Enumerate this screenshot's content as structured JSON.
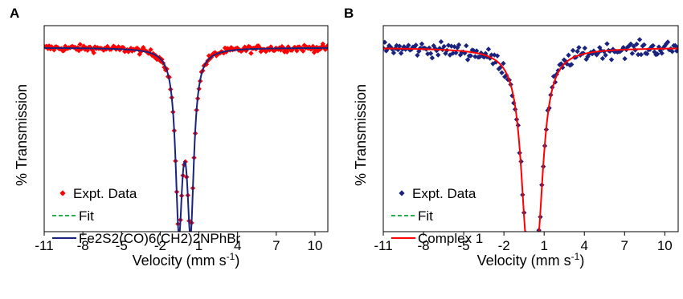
{
  "chart_data": [
    {
      "panel_label": "A",
      "type": "scatter",
      "xlabel": "Velocity (mm s",
      "xlabel_sup": "-1",
      "xlabel_end": ")",
      "ylabel": "% Transmission",
      "xlim": [
        -11,
        11
      ],
      "ylim": [
        0.0,
        1.12
      ],
      "xticks": [
        -11,
        -8,
        -5,
        -2,
        1,
        4,
        7,
        10
      ],
      "xtick_labels": [
        "-11",
        "-8",
        "-5",
        "-2",
        "1",
        "4",
        "7",
        "10"
      ],
      "grid": false,
      "legend_position": "bottom-left",
      "legend": [
        {
          "label": "Expt. Data",
          "kind": "diamond",
          "color": "#ff0000"
        },
        {
          "label": "Fit",
          "kind": "dashed",
          "color": "#22b14c"
        },
        {
          "label": "Fe2S2(CO)6(CH2)2NPhBr",
          "kind": "line",
          "color": "#1a237e"
        }
      ],
      "series": [
        {
          "name": "Expt. Data",
          "marker_color": "#ff0000",
          "baseline": 1.0,
          "noise": 0.018,
          "x_start": -11,
          "x_end": 11,
          "n_points": 230,
          "dips": [
            {
              "center": -0.55,
              "depth": 0.92,
              "hwhm": 0.32
            },
            {
              "center": 0.35,
              "depth": 0.92,
              "hwhm": 0.32
            }
          ]
        },
        {
          "name": "Fe2S2(CO)6(CH2)2NPhBr",
          "line_color": "#1a237e",
          "baseline": 1.0,
          "dips": [
            {
              "center": -0.55,
              "depth": 0.92,
              "hwhm": 0.32
            },
            {
              "center": 0.35,
              "depth": 0.92,
              "hwhm": 0.32
            }
          ]
        }
      ]
    },
    {
      "panel_label": "B",
      "type": "scatter",
      "xlabel": "Velocity (mm s",
      "xlabel_sup": "-1",
      "xlabel_end": ")",
      "ylabel": "% Transmission",
      "xlim": [
        -11,
        11
      ],
      "ylim": [
        0.0,
        1.12
      ],
      "xticks": [
        -11,
        -8,
        -5,
        -2,
        1,
        4,
        7,
        10
      ],
      "xtick_labels": [
        "-11",
        "-8",
        "-5",
        "-2",
        "1",
        "4",
        "7",
        "10"
      ],
      "grid": false,
      "legend_position": "bottom-left",
      "legend": [
        {
          "label": "Expt. Data",
          "kind": "diamond",
          "color": "#1a237e"
        },
        {
          "label": "Fit",
          "kind": "dashed",
          "color": "#22b14c"
        },
        {
          "label": "Complex 1",
          "kind": "line",
          "color": "#ff0000"
        }
      ],
      "series": [
        {
          "name": "Expt. Data",
          "marker_color": "#1a237e",
          "baseline": 1.0,
          "noise": 0.04,
          "x_start": -11,
          "x_end": 11,
          "n_points": 200,
          "dips": [
            {
              "center": -0.3,
              "depth": 0.82,
              "hwhm": 0.55
            },
            {
              "center": 0.5,
              "depth": 0.82,
              "hwhm": 0.55
            }
          ]
        },
        {
          "name": "Complex 1",
          "line_color": "#ff0000",
          "baseline": 1.0,
          "dips": [
            {
              "center": -0.3,
              "depth": 0.82,
              "hwhm": 0.55
            },
            {
              "center": 0.5,
              "depth": 0.82,
              "hwhm": 0.55
            }
          ]
        }
      ]
    }
  ]
}
